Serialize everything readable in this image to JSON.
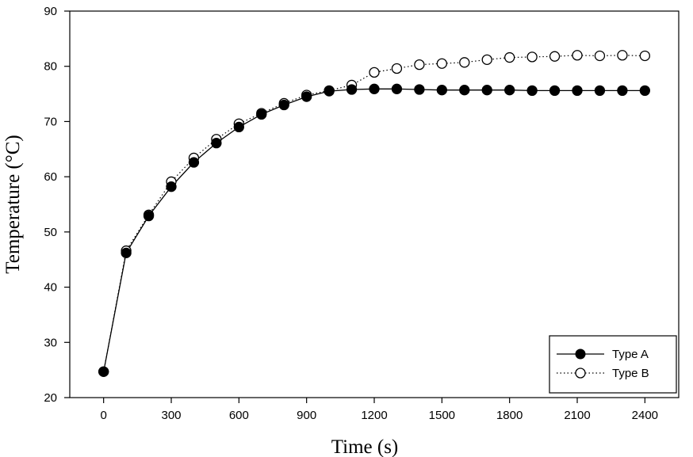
{
  "chart_data": {
    "type": "line",
    "xlabel": "Time (s)",
    "ylabel": "Temperature (°C)",
    "xlim": [
      -150,
      2550
    ],
    "ylim": [
      20,
      90
    ],
    "xticks": [
      0,
      300,
      600,
      900,
      1200,
      1500,
      1800,
      2100,
      2400
    ],
    "yticks": [
      20,
      30,
      40,
      50,
      60,
      70,
      80,
      90
    ],
    "grid": false,
    "legend_position": "bottom-right",
    "x": [
      0,
      100,
      200,
      300,
      400,
      500,
      600,
      700,
      800,
      900,
      1000,
      1100,
      1200,
      1300,
      1400,
      1500,
      1600,
      1700,
      1800,
      1900,
      2000,
      2100,
      2200,
      2300,
      2400
    ],
    "series": [
      {
        "name": "Type A",
        "marker": "filled-circle",
        "line": "solid",
        "values": [
          24.7,
          46.2,
          52.9,
          58.2,
          62.6,
          66.1,
          69.0,
          71.3,
          73.0,
          74.5,
          75.5,
          75.8,
          75.9,
          75.9,
          75.8,
          75.7,
          75.7,
          75.7,
          75.7,
          75.6,
          75.6,
          75.6,
          75.6,
          75.6,
          75.6
        ]
      },
      {
        "name": "Type B",
        "marker": "open-circle",
        "line": "dotted",
        "values": [
          24.7,
          46.6,
          53.1,
          59.1,
          63.4,
          66.8,
          69.6,
          71.5,
          73.3,
          74.8,
          75.6,
          76.6,
          78.9,
          79.6,
          80.3,
          80.5,
          80.7,
          81.2,
          81.6,
          81.7,
          81.8,
          82.0,
          81.9,
          82.0,
          81.9
        ]
      }
    ]
  }
}
